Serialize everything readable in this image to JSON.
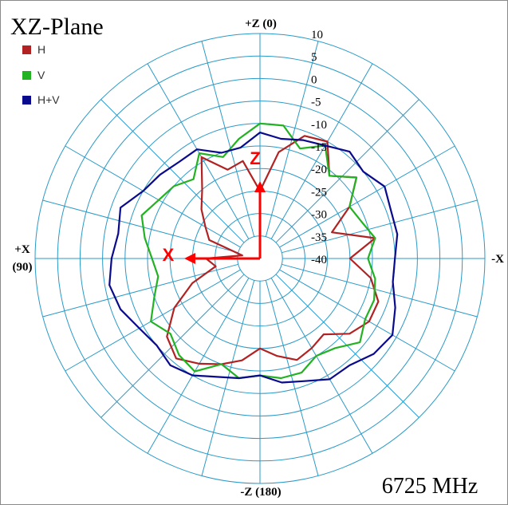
{
  "chart_data": {
    "type": "polar-line",
    "title": "XZ-Plane",
    "frequency_label": "6725 MHz",
    "r_axis": {
      "min": -40,
      "max": 10,
      "step": 5,
      "tick_labels": [
        "10",
        "5",
        "0",
        "-5",
        "-10",
        "-15",
        "-20",
        "-25",
        "-30",
        "-35",
        "-40"
      ]
    },
    "angle_step_deg": 15,
    "direction_labels": {
      "top": "+Z (0)",
      "bottom": "-Z (180)",
      "left_line1": "+X",
      "left_line2": "(90)",
      "right": "-X"
    },
    "axis_arrows": {
      "x_label": "X",
      "z_label": "Z",
      "color": "#ff0000"
    },
    "legend": [
      {
        "name": "H",
        "color": "#b22222"
      },
      {
        "name": "V",
        "color": "#22b222"
      },
      {
        "name": "H+V",
        "color": "#0a0a8c"
      }
    ],
    "grid_color": "#2a9ac8",
    "series": [
      {
        "name": "H",
        "color": "#b22222",
        "theta": [
          0,
          10,
          20,
          30,
          40,
          50,
          60,
          70,
          80,
          90,
          100,
          110,
          120,
          130,
          140,
          150,
          160,
          170,
          180,
          190,
          200,
          210,
          220,
          230,
          240,
          250,
          260,
          270,
          280,
          290,
          300,
          310,
          320,
          330,
          340,
          350
        ],
        "r": [
          -25,
          -18,
          -19,
          -14,
          -20,
          -23,
          -26,
          -28,
          -36,
          -28,
          -30,
          -24,
          -18,
          -13,
          -11,
          -13,
          -15,
          -17,
          -20,
          -18,
          -16,
          -17,
          -18,
          -14,
          -12,
          -12,
          -15,
          -20,
          -14,
          -23,
          -17,
          -12,
          -16,
          -10,
          -11,
          -16
        ]
      },
      {
        "name": "V",
        "color": "#22b222",
        "theta": [
          0,
          10,
          20,
          30,
          40,
          50,
          60,
          70,
          80,
          90,
          100,
          110,
          120,
          130,
          140,
          150,
          160,
          170,
          180,
          190,
          200,
          210,
          220,
          230,
          240,
          250,
          260,
          270,
          280,
          290,
          300,
          310,
          320,
          330,
          340,
          350
        ],
        "r": [
          -10,
          -13,
          -16,
          -13,
          -17,
          -15,
          -14,
          -12,
          -14,
          -16,
          -17,
          -15,
          -12,
          -14,
          -12,
          -11,
          -15,
          -13,
          -14,
          -13,
          -13,
          -15,
          -14,
          -11,
          -13,
          -13,
          -14,
          -16,
          -14,
          -16,
          -17,
          -12,
          -16,
          -11,
          -14,
          -10
        ]
      },
      {
        "name": "H+V",
        "color": "#0a0a8c",
        "theta": [
          0,
          10,
          20,
          30,
          40,
          50,
          60,
          70,
          80,
          90,
          100,
          110,
          120,
          130,
          140,
          150,
          160,
          170,
          180,
          190,
          200,
          210,
          220,
          230,
          240,
          250,
          260,
          270,
          280,
          290,
          300,
          310,
          320,
          330,
          340,
          350
        ],
        "r": [
          -12,
          -15,
          -15,
          -12,
          -12,
          -11,
          -10,
          -7,
          -8,
          -7,
          -6,
          -7,
          -9,
          -10,
          -9,
          -10,
          -12,
          -13,
          -14,
          -12,
          -11,
          -9,
          -9,
          -7,
          -6,
          -8,
          -10,
          -10,
          -9,
          -9,
          -8,
          -10,
          -9,
          -11,
          -12,
          -13
        ]
      }
    ]
  }
}
